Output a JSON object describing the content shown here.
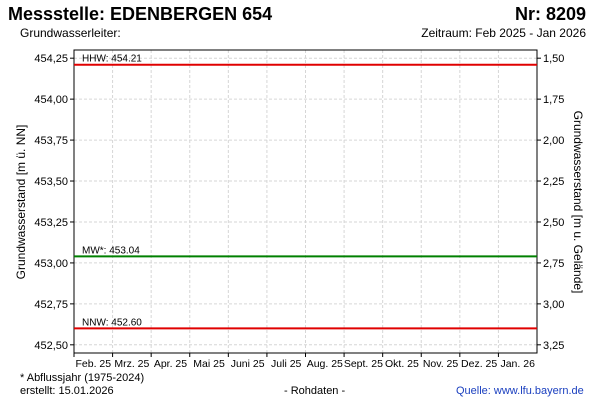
{
  "header": {
    "station": "Messstelle: EDENBERGEN 654",
    "number": "Nr: 8209",
    "aquifer": "Grundwasserleiter:",
    "period": "Zeitraum: Feb 2025 - Jan 2026"
  },
  "chart_data": {
    "type": "line",
    "ylabel": "Grundwasserstand [m ü. NN]",
    "ylabel_right": "Grundwasserstand [m u. Gelände]",
    "ylim": [
      452.45,
      454.3
    ],
    "y_ticks": [
      "454,25",
      "454,00",
      "453,75",
      "453,50",
      "453,25",
      "453,00",
      "452,75",
      "452,50"
    ],
    "y_tick_values": [
      454.25,
      454.0,
      453.75,
      453.5,
      453.25,
      453.0,
      452.75,
      452.5
    ],
    "y2_ticks": [
      "1,50",
      "1,75",
      "2,00",
      "2,25",
      "2,50",
      "2,75",
      "3,00",
      "3,25"
    ],
    "y2_tick_values": [
      1.5,
      1.75,
      2.0,
      2.25,
      2.5,
      2.75,
      3.0,
      3.25
    ],
    "y2_reference": 455.75,
    "x_categories": [
      "Feb. 25",
      "Mrz. 25",
      "Apr. 25",
      "Mai 25",
      "Juni 25",
      "Juli 25",
      "Aug. 25",
      "Sept. 25",
      "Okt. 25",
      "Nov. 25",
      "Dez. 25",
      "Jan. 26"
    ],
    "reference_lines": [
      {
        "label": "HHW: 454.21",
        "value": 454.21,
        "color": "#e00000"
      },
      {
        "label": "MW*: 453.04",
        "value": 453.04,
        "color": "#008000"
      },
      {
        "label": "NNW: 452.60",
        "value": 452.6,
        "color": "#e00000"
      }
    ],
    "grid": true
  },
  "footer": {
    "note": "* Abflussjahr (1975-2024)",
    "created": "erstellt:  15.01.2026",
    "raw": "- Rohdaten -",
    "source": "Quelle: www.lfu.bayern.de"
  }
}
